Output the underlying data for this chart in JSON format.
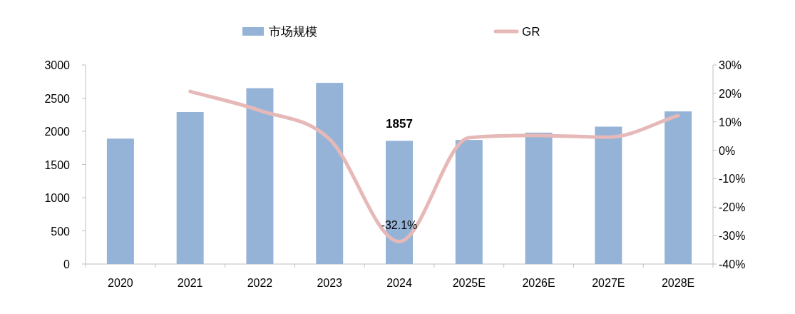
{
  "chart_data": {
    "type": "bar",
    "categories": [
      "2020",
      "2021",
      "2022",
      "2023",
      "2024",
      "2025E",
      "2026E",
      "2027E",
      "2028E"
    ],
    "series": [
      {
        "name": "市场规模",
        "color": "#95b3d7",
        "values": [
          1890,
          2290,
          2650,
          2730,
          1857,
          1870,
          1980,
          2070,
          2300
        ],
        "value_labels": [
          null,
          null,
          null,
          null,
          "1857",
          null,
          null,
          null,
          null
        ]
      },
      {
        "name": "GR",
        "type": "line",
        "axis": "y2",
        "color": "#e6b9b8",
        "values": [
          null,
          20.7,
          14,
          3.9,
          -32.1,
          4.4,
          5.2,
          4.6,
          12.2
        ],
        "value_labels": [
          null,
          null,
          null,
          null,
          "-32.1%",
          null,
          null,
          null,
          null
        ]
      }
    ],
    "ylim": [
      0,
      3000
    ],
    "yticks": [
      0,
      500,
      1000,
      1500,
      2000,
      2500,
      3000
    ],
    "y2lim": [
      -40,
      30
    ],
    "y2ticks": [
      {
        "value": -40,
        "label": "-40%"
      },
      {
        "value": -30,
        "label": "-30%"
      },
      {
        "value": -20,
        "label": "-20%"
      },
      {
        "value": -10,
        "label": "-10%"
      },
      {
        "value": 0,
        "label": "0%"
      },
      {
        "value": 10,
        "label": "10%"
      },
      {
        "value": 20,
        "label": "20%"
      },
      {
        "value": 30,
        "label": "30%"
      }
    ],
    "legend": "top",
    "grid": false
  }
}
